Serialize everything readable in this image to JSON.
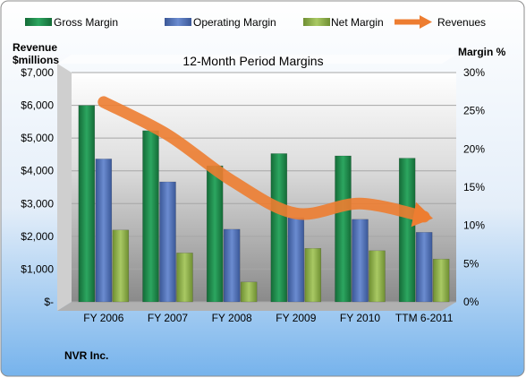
{
  "chart_data": {
    "type": "bar",
    "title": "12-Month Period Margins",
    "company": "NVR Inc.",
    "y_left_label_line1": "Revenue",
    "y_left_label_line2": "$millions",
    "y_right_label": "Margin %",
    "categories": [
      "FY 2006",
      "FY 2007",
      "FY 2008",
      "FY 2009",
      "FY 2010",
      "TTM 6-2011"
    ],
    "left_axis": {
      "min": 0,
      "max": 7000,
      "step": 1000,
      "tick_labels": [
        "$-",
        "$1,000",
        "$2,000",
        "$3,000",
        "$4,000",
        "$5,000",
        "$6,000",
        "$7,000"
      ]
    },
    "right_axis": {
      "min": 0,
      "max": 30,
      "step": 5,
      "tick_labels": [
        "0%",
        "5%",
        "10%",
        "15%",
        "20%",
        "25%",
        "30%"
      ]
    },
    "series": [
      {
        "name": "Gross Margin",
        "kind": "bar",
        "axis": "right",
        "color": "#1e8a4c",
        "values": [
          25.7,
          22.4,
          17.8,
          19.4,
          19.1,
          18.8
        ]
      },
      {
        "name": "Operating Margin",
        "kind": "bar",
        "axis": "right",
        "color": "#4f6fb5",
        "values": [
          18.7,
          15.7,
          9.5,
          11.0,
          10.8,
          9.1
        ]
      },
      {
        "name": "Net Margin",
        "kind": "bar",
        "axis": "right",
        "color": "#8fb04a",
        "values": [
          9.4,
          6.4,
          2.6,
          7.0,
          6.7,
          5.6
        ]
      },
      {
        "name": "Revenues",
        "kind": "line",
        "axis": "left",
        "color": "#ed7d31",
        "values": [
          6100,
          5100,
          3700,
          2700,
          3000,
          2600
        ]
      }
    ],
    "grid": true,
    "legend_position": "top"
  }
}
